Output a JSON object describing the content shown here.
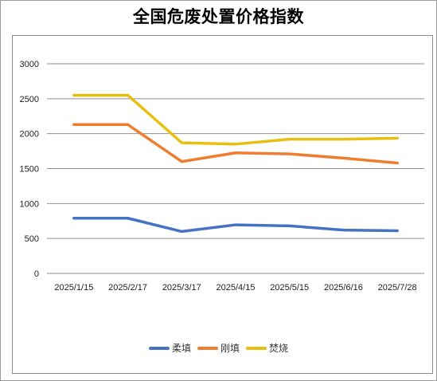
{
  "chart_data": {
    "type": "line",
    "title": "全国危废处置价格指数",
    "xlabel": "",
    "ylabel": "",
    "categories": [
      "2025/1/15",
      "2025/2/17",
      "2025/3/17",
      "2025/4/15",
      "2025/5/15",
      "2025/6/16",
      "2025/7/28"
    ],
    "ylim": [
      0,
      3000
    ],
    "yticks": [
      "0",
      "500",
      "1000",
      "1500",
      "2000",
      "2500",
      "3000"
    ],
    "grid": true,
    "legend_position": "bottom",
    "series": [
      {
        "name": "柔填",
        "color": "#4472C4",
        "values": [
          790,
          790,
          600,
          695,
          680,
          620,
          610
        ]
      },
      {
        "name": "刚填",
        "color": "#ED7D31",
        "values": [
          2130,
          2130,
          1600,
          1725,
          1710,
          1650,
          1580
        ]
      },
      {
        "name": "焚烧",
        "color": "#E8BE0F",
        "values": [
          2550,
          2550,
          1870,
          1850,
          1920,
          1920,
          1935
        ]
      }
    ]
  }
}
